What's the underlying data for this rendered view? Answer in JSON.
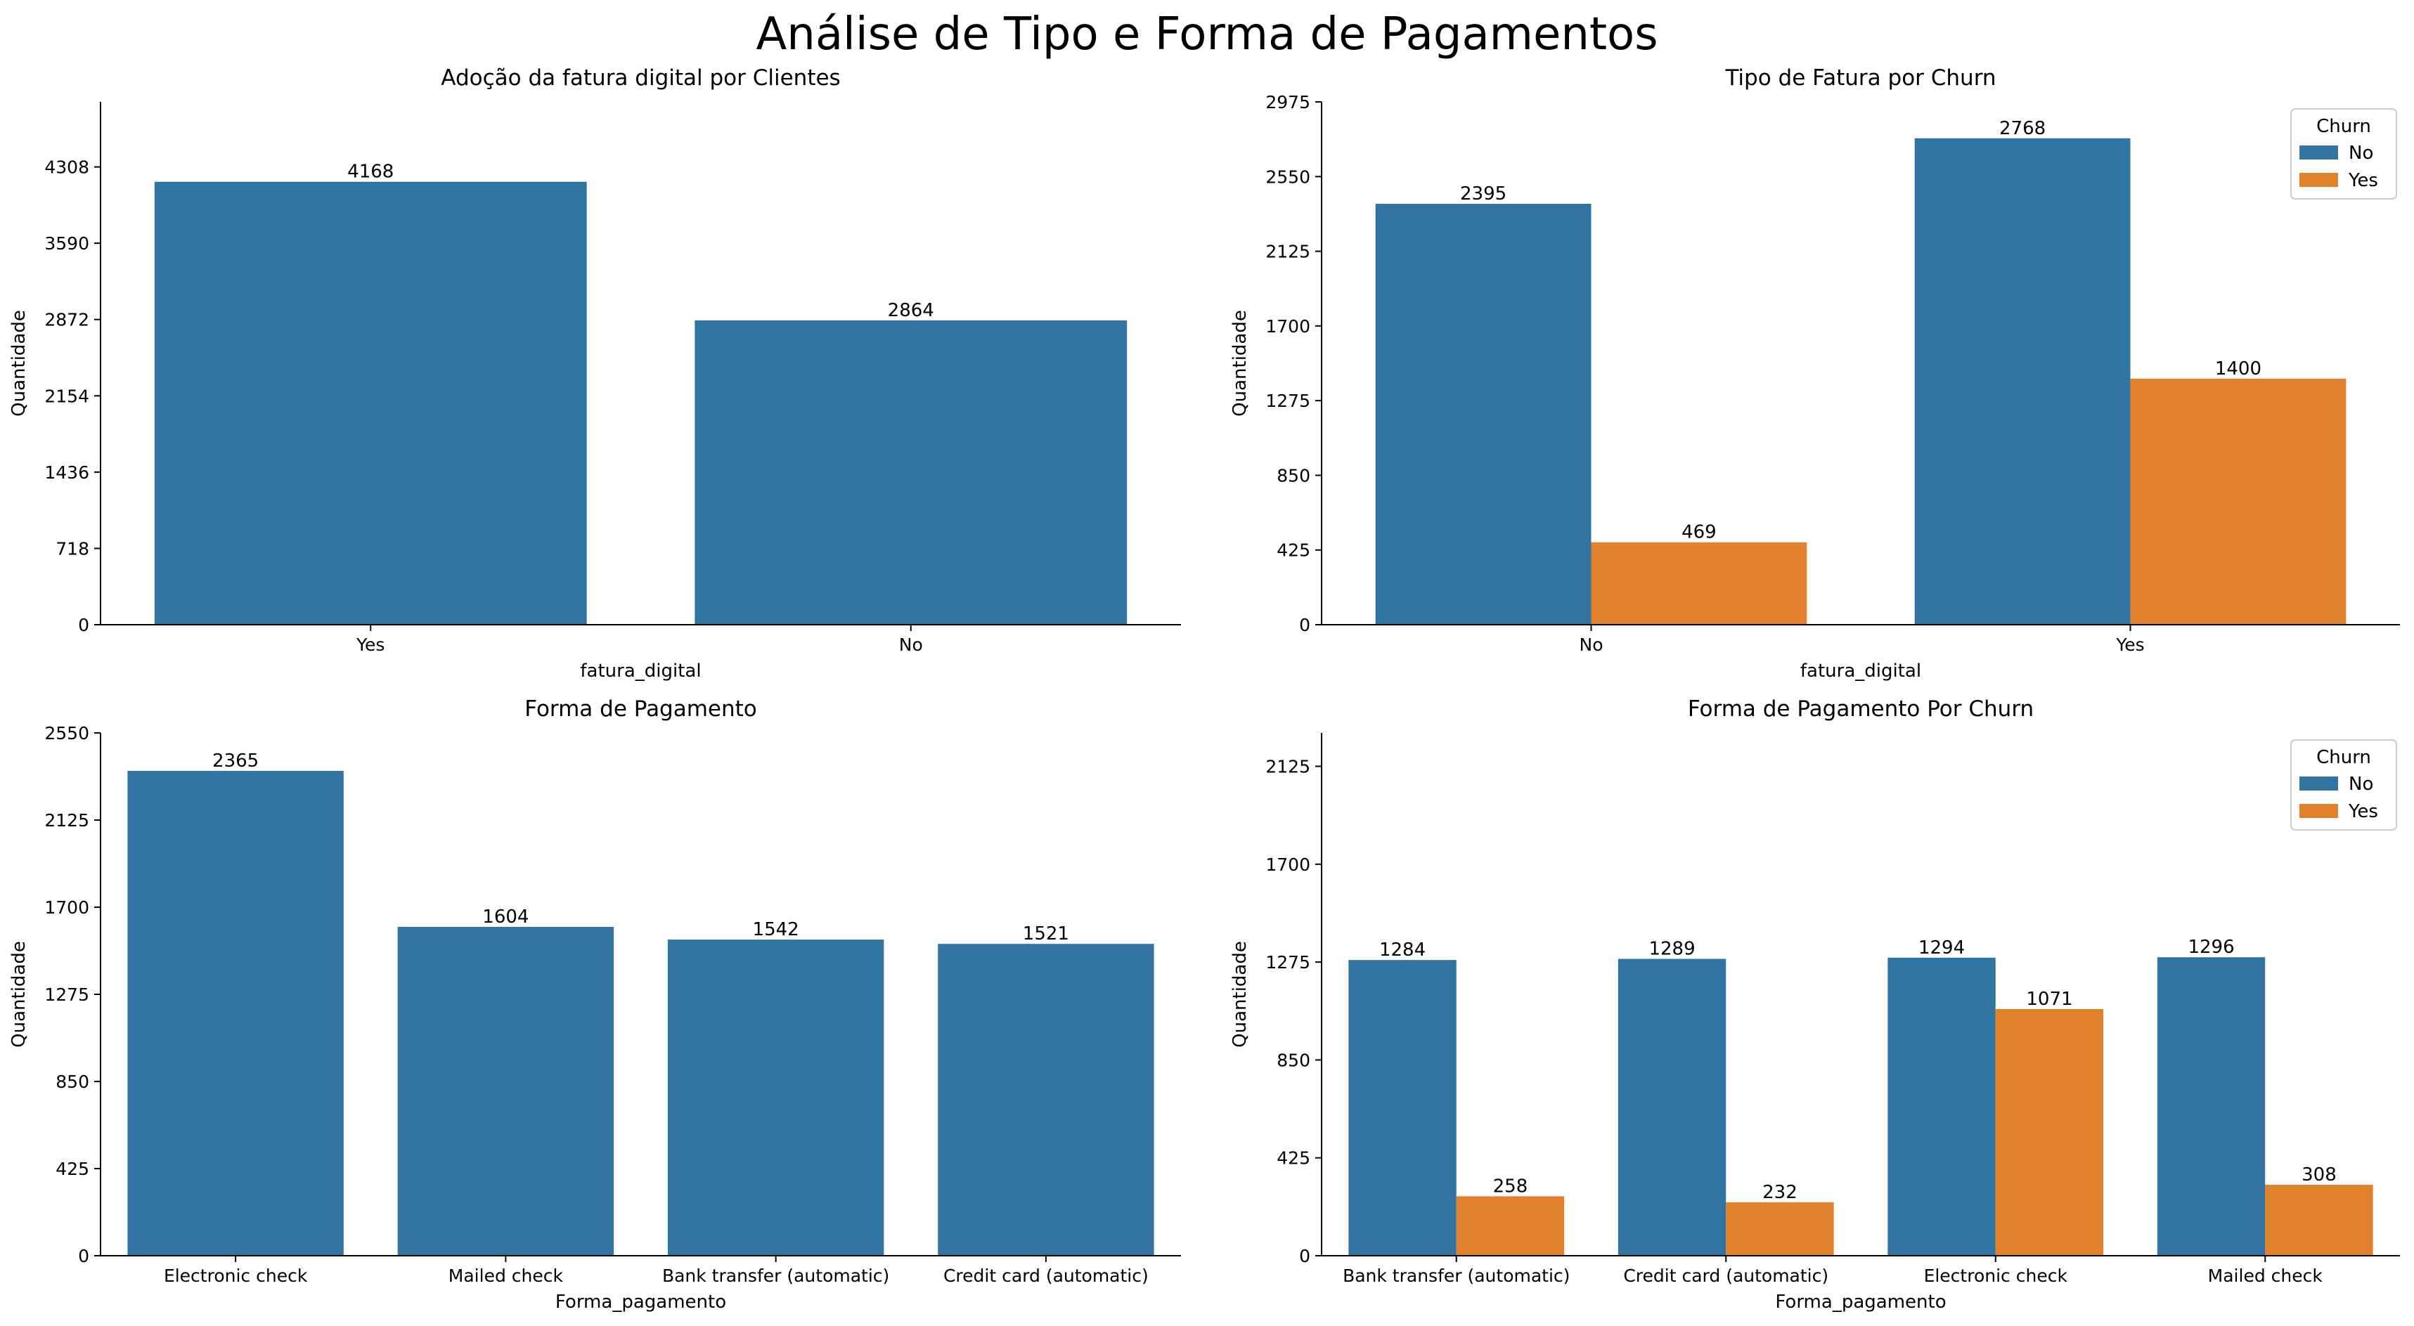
{
  "figure_title": "Análise de Tipo e Forma de Pagamentos",
  "colors": {
    "No": "#3274a1",
    "Yes": "#e1812c",
    "default": "#3274a1"
  },
  "chart_data": [
    {
      "type": "bar",
      "title": "Adoção da fatura digital por Clientes",
      "xlabel": "fatura_digital",
      "ylabel": "Quantidade",
      "categories": [
        "Yes",
        "No"
      ],
      "series": [
        {
          "values": [
            4168,
            2864
          ]
        }
      ],
      "yticks": [
        0,
        718,
        1436,
        2154,
        2872,
        3590,
        4308
      ],
      "ylim": [
        0,
        4920
      ],
      "legend": null
    },
    {
      "type": "bar",
      "title": "Tipo de Fatura por Churn",
      "xlabel": "fatura_digital",
      "ylabel": "Quantidade",
      "categories": [
        "No",
        "Yes"
      ],
      "series": [
        {
          "name": "No",
          "values": [
            2395,
            2768
          ]
        },
        {
          "name": "Yes",
          "values": [
            469,
            1400
          ]
        }
      ],
      "yticks": [
        0,
        425,
        850,
        1275,
        1700,
        2125,
        2550,
        2975
      ],
      "ylim": [
        0,
        2975
      ],
      "legend": {
        "title": "Churn",
        "position": "top-right"
      }
    },
    {
      "type": "bar",
      "title": "Forma de Pagamento",
      "xlabel": "Forma_pagamento",
      "ylabel": "Quantidade",
      "categories": [
        "Electronic check",
        "Mailed check",
        "Bank transfer (automatic)",
        "Credit card (automatic)"
      ],
      "series": [
        {
          "values": [
            2365,
            1604,
            1542,
            1521
          ]
        }
      ],
      "yticks": [
        0,
        425,
        850,
        1275,
        1700,
        2125,
        2550
      ],
      "ylim": [
        0,
        2550
      ],
      "legend": null
    },
    {
      "type": "bar",
      "title": "Forma de Pagamento Por Churn",
      "xlabel": "Forma_pagamento",
      "ylabel": "Quantidade",
      "categories": [
        "Bank transfer (automatic)",
        "Credit card (automatic)",
        "Electronic check",
        "Mailed check"
      ],
      "series": [
        {
          "name": "No",
          "values": [
            1284,
            1289,
            1294,
            1296
          ]
        },
        {
          "name": "Yes",
          "values": [
            258,
            232,
            1071,
            308
          ]
        }
      ],
      "yticks": [
        0,
        425,
        850,
        1275,
        1700,
        2125
      ],
      "ylim": [
        0,
        2270
      ],
      "legend": {
        "title": "Churn",
        "position": "top-right"
      }
    }
  ]
}
